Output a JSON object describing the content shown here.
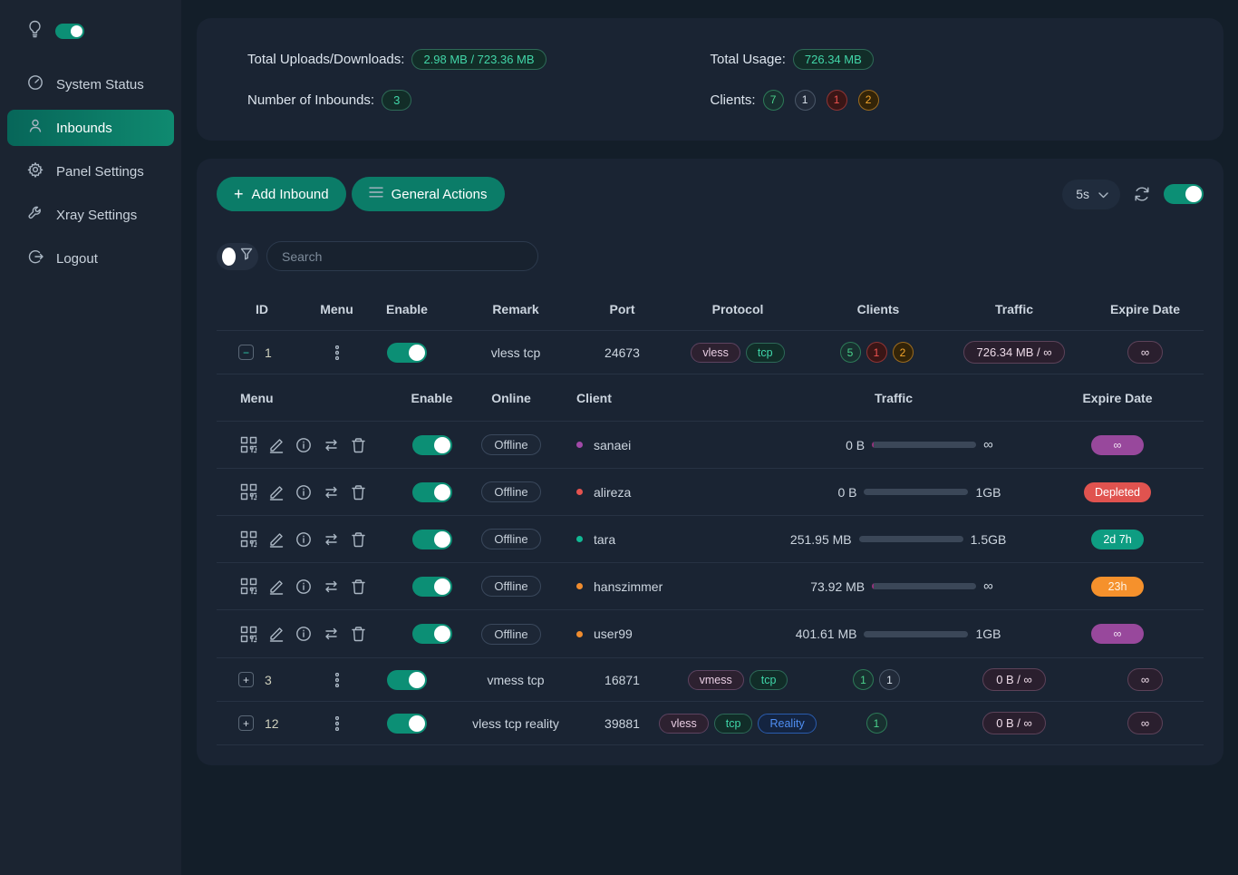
{
  "sidebar": {
    "items": [
      {
        "label": "System Status"
      },
      {
        "label": "Inbounds"
      },
      {
        "label": "Panel Settings"
      },
      {
        "label": "Xray Settings"
      },
      {
        "label": "Logout"
      }
    ]
  },
  "stats": {
    "total_uploads_label": "Total Uploads/Downloads:",
    "total_uploads_value": "2.98 MB / 723.36 MB",
    "number_inbounds_label": "Number of Inbounds:",
    "number_inbounds_value": "3",
    "total_usage_label": "Total Usage:",
    "total_usage_value": "726.34 MB",
    "clients_label": "Clients:",
    "client_badges": [
      {
        "value": "7",
        "tone": "green"
      },
      {
        "value": "1",
        "tone": "gray"
      },
      {
        "value": "1",
        "tone": "red"
      },
      {
        "value": "2",
        "tone": "orange"
      }
    ]
  },
  "toolbar": {
    "add_inbound_label": "Add Inbound",
    "general_actions_label": "General Actions",
    "refresh_interval": "5s"
  },
  "search": {
    "placeholder": "Search"
  },
  "inbounds_table": {
    "headers": {
      "id": "ID",
      "menu": "Menu",
      "enable": "Enable",
      "remark": "Remark",
      "port": "Port",
      "protocol": "Protocol",
      "clients": "Clients",
      "traffic": "Traffic",
      "expire": "Expire Date"
    },
    "rows": [
      {
        "id": "1",
        "expanded": true,
        "remark": "vless tcp",
        "port": "24673",
        "protocols": [
          "vless",
          "tcp"
        ],
        "client_counts": [
          "5",
          "1",
          "2"
        ],
        "traffic": "726.34 MB / ∞",
        "expire": "∞"
      },
      {
        "id": "3",
        "expanded": false,
        "remark": "vmess tcp",
        "port": "16871",
        "protocols": [
          "vmess",
          "tcp"
        ],
        "client_counts": [
          "1",
          "1"
        ],
        "traffic": "0 B / ∞",
        "expire": "∞"
      },
      {
        "id": "12",
        "expanded": false,
        "remark": "vless tcp reality",
        "port": "39881",
        "protocols": [
          "vless",
          "tcp",
          "Reality"
        ],
        "client_counts": [
          "1"
        ],
        "traffic": "0 B / ∞",
        "expire": "∞"
      }
    ]
  },
  "client_table": {
    "headers": {
      "menu": "Menu",
      "enable": "Enable",
      "online": "Online",
      "client": "Client",
      "traffic": "Traffic",
      "expire": "Expire Date"
    },
    "rows": [
      {
        "status": "Offline",
        "name": "sanaei",
        "used": "0 B",
        "limit": "∞",
        "expire": "∞",
        "dot_color": "#a149a8",
        "bar": {
          "type": "infinite"
        }
      },
      {
        "status": "Offline",
        "name": "alireza",
        "used": "0 B",
        "limit": "1GB",
        "expire": "Depleted",
        "dot_color": "#e5534f",
        "bar": {
          "type": "normal",
          "percent": 0,
          "color": "#12a88e"
        }
      },
      {
        "status": "Offline",
        "name": "tara",
        "used": "251.95 MB",
        "limit": "1.5GB",
        "expire": "2d 7h",
        "dot_color": "#10b894",
        "bar": {
          "type": "normal",
          "percent": 17,
          "color": "#12a88e"
        }
      },
      {
        "status": "Offline",
        "name": "hanszimmer",
        "used": "73.92 MB",
        "limit": "∞",
        "expire": "23h",
        "dot_color": "#f08c2e",
        "bar": {
          "type": "infinite"
        }
      },
      {
        "status": "Offline",
        "name": "user99",
        "used": "401.61 MB",
        "limit": "1GB",
        "expire": "∞",
        "dot_color": "#f08c2e",
        "bar": {
          "type": "normal",
          "percent": 39,
          "color": "#f08c2e"
        }
      }
    ]
  },
  "colors": {
    "accent_teal": "#0d8a72",
    "badge_purple": "#98489c",
    "badge_red": "#e0534f",
    "badge_teal": "#0e9d82",
    "badge_orange": "#f5912c"
  }
}
